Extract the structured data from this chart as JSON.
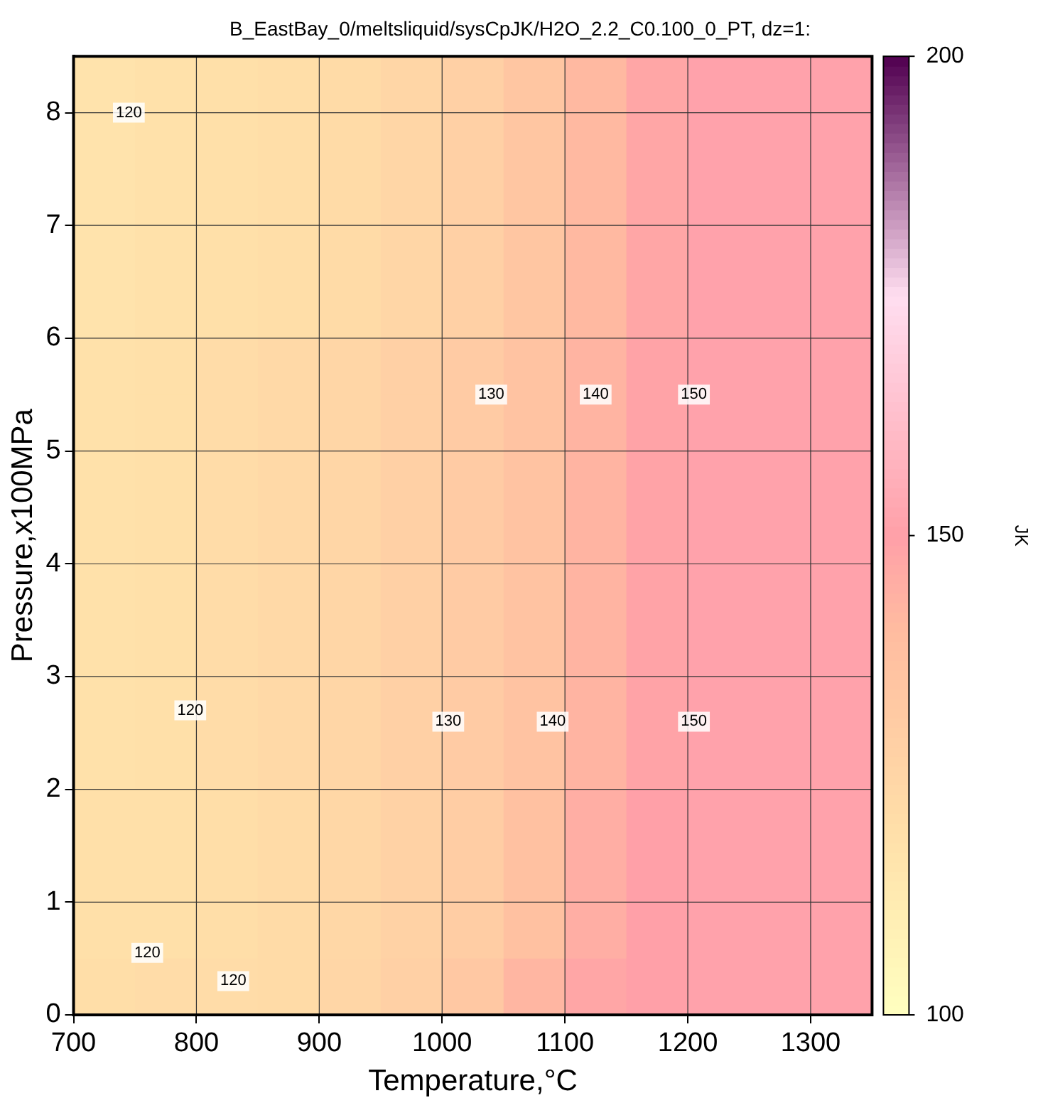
{
  "chart_data": {
    "type": "heatmap",
    "title": "B_EastBay_0/meltsliquid/sysCpJK/H2O_2.2_C0.100_0_PT, dz=1:",
    "xlabel": "Temperature,°C",
    "ylabel": "Pressure,x100MPa",
    "clabel": "JK",
    "xlim": [
      700,
      1350
    ],
    "xticks": [
      700,
      800,
      900,
      1000,
      1100,
      1200,
      1300
    ],
    "ylim": [
      0,
      8.5
    ],
    "yticks": [
      0,
      1,
      2,
      3,
      4,
      5,
      6,
      7,
      8
    ],
    "clim": [
      100,
      200
    ],
    "cticks": [
      100,
      150,
      200
    ],
    "grid": true,
    "cells": [
      [
        117,
        118,
        119,
        120,
        122,
        125,
        128,
        134,
        141,
        148,
        151,
        151,
        151
      ],
      [
        117,
        118,
        119,
        120,
        122,
        125,
        128,
        134,
        141,
        148,
        151,
        151,
        151
      ],
      [
        117,
        118,
        119,
        120,
        122,
        125,
        128,
        134,
        141,
        148,
        151,
        151,
        151
      ],
      [
        117,
        118,
        119,
        120,
        122,
        125,
        128,
        134,
        141,
        148,
        151,
        151,
        151
      ],
      [
        117,
        118,
        119,
        120,
        122,
        125,
        128,
        134,
        141,
        148,
        151,
        151,
        151
      ],
      [
        118,
        119,
        121,
        123,
        125,
        128,
        131,
        136,
        143,
        149,
        151,
        151,
        151
      ],
      [
        118,
        119,
        121,
        123,
        125,
        128,
        131,
        136,
        143,
        149,
        151,
        151,
        151
      ],
      [
        118,
        119,
        121,
        123,
        125,
        128,
        131,
        136,
        143,
        149,
        151,
        151,
        151
      ],
      [
        118,
        119,
        121,
        123,
        125,
        128,
        131,
        136,
        143,
        149,
        151,
        151,
        151
      ],
      [
        118,
        119,
        121,
        123,
        125,
        128,
        131,
        136,
        143,
        149,
        151,
        151,
        151
      ],
      [
        118,
        119,
        121,
        123,
        125,
        128,
        131,
        136,
        143,
        149,
        151,
        151,
        151
      ],
      [
        118,
        119,
        121,
        123,
        125,
        128,
        131,
        136,
        143,
        149,
        151,
        151,
        151
      ],
      [
        118,
        119,
        121,
        123,
        125,
        128,
        131,
        136,
        143,
        149,
        151,
        151,
        151
      ],
      [
        119,
        119,
        120,
        122,
        124,
        127,
        130,
        137,
        145,
        150,
        151,
        151,
        151
      ],
      [
        119,
        119,
        120,
        122,
        124,
        127,
        130,
        137,
        145,
        150,
        151,
        151,
        151
      ],
      [
        119,
        119,
        120,
        122,
        124,
        127,
        130,
        137,
        145,
        150,
        151,
        151,
        151
      ],
      [
        120,
        121,
        121,
        122,
        125,
        128,
        133,
        142,
        148,
        150,
        151,
        151,
        151
      ]
    ],
    "annotations": [
      "120",
      "120",
      "120",
      "120",
      "130",
      "130",
      "140",
      "140",
      "150",
      "150"
    ]
  }
}
